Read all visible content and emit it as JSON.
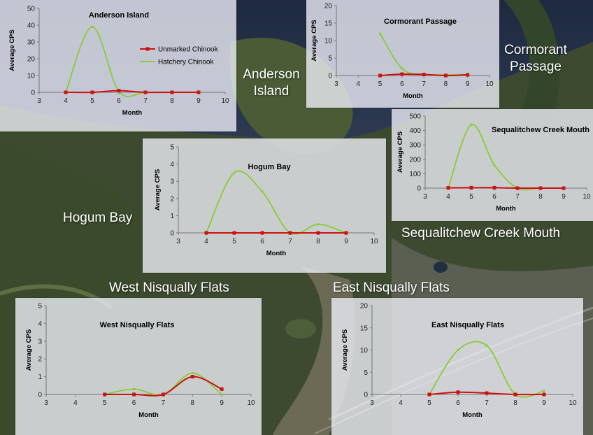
{
  "colors": {
    "unmarked": "#cc1111",
    "hatchery": "#88cc33"
  },
  "map_labels": {
    "anderson_island": [
      "Anderson",
      "Island"
    ],
    "cormorant_passage": [
      "Cormorant",
      "Passage"
    ],
    "hogum_bay": [
      "Hogum Bay"
    ],
    "sequalitchew": [
      "Sequalitchew Creek Mouth"
    ],
    "west_nisqually": [
      "West Nisqually Flats"
    ],
    "east_nisqually": [
      "East Nisqually Flats"
    ]
  },
  "legend": {
    "unmarked": "Unmarked Chinook",
    "hatchery": "Hatchery Chinook"
  },
  "chart_data": [
    {
      "id": "anderson",
      "type": "line",
      "title": "Anderson Island",
      "xlabel": "Month",
      "ylabel": "Average CPS",
      "xlim": [
        3,
        10
      ],
      "xticks": [
        3,
        4,
        5,
        6,
        7,
        8,
        9,
        10
      ],
      "ylim": [
        0,
        50
      ],
      "yticks": [
        0,
        10,
        20,
        30,
        40,
        50
      ],
      "x": [
        4,
        5,
        6,
        7,
        8,
        9
      ],
      "series": [
        {
          "name": "Unmarked Chinook",
          "values": [
            0,
            0,
            1,
            0,
            0,
            0
          ]
        },
        {
          "name": "Hatchery Chinook",
          "values": [
            0,
            39,
            0.5,
            0,
            0,
            0
          ]
        }
      ]
    },
    {
      "id": "cormorant",
      "type": "line",
      "title": "Cormorant Passage",
      "xlabel": "Month",
      "ylabel": "Average CPS",
      "xlim": [
        3,
        10
      ],
      "xticks": [
        3,
        4,
        5,
        6,
        7,
        8,
        9,
        10
      ],
      "ylim": [
        0,
        20
      ],
      "yticks": [
        0,
        5,
        10,
        15,
        20
      ],
      "x": [
        5,
        6,
        7,
        8,
        9
      ],
      "series": [
        {
          "name": "Unmarked Chinook",
          "values": [
            0,
            0.4,
            0.3,
            0,
            0.2
          ]
        },
        {
          "name": "Hatchery Chinook",
          "values": [
            12,
            2,
            0.3,
            0.2,
            0.3
          ]
        }
      ]
    },
    {
      "id": "sequalitchew",
      "type": "line",
      "title": "Sequalitchew Creek Mouth",
      "xlabel": "Month",
      "ylabel": "Average CPS",
      "xlim": [
        3,
        10
      ],
      "xticks": [
        3,
        4,
        5,
        6,
        7,
        8,
        9,
        10
      ],
      "ylim": [
        0,
        500
      ],
      "yticks": [
        0,
        100,
        200,
        300,
        400,
        500
      ],
      "x": [
        4,
        5,
        6,
        7,
        8,
        9
      ],
      "series": [
        {
          "name": "Unmarked Chinook",
          "values": [
            2,
            3,
            3,
            0,
            0,
            0
          ]
        },
        {
          "name": "Hatchery Chinook",
          "values": [
            0,
            440,
            160,
            0,
            0,
            0
          ]
        }
      ]
    },
    {
      "id": "hogum",
      "type": "line",
      "title": "Hogum Bay",
      "xlabel": "Month",
      "ylabel": "Average CPS",
      "xlim": [
        3,
        10
      ],
      "xticks": [
        3,
        4,
        5,
        6,
        7,
        8,
        9,
        10
      ],
      "ylim": [
        0,
        5
      ],
      "yticks": [
        0,
        1,
        2,
        3,
        4,
        5
      ],
      "x": [
        4,
        5,
        6,
        7,
        8,
        9
      ],
      "series": [
        {
          "name": "Unmarked Chinook",
          "values": [
            0,
            0,
            0,
            0,
            0,
            0
          ]
        },
        {
          "name": "Hatchery Chinook",
          "values": [
            0,
            3.5,
            2.4,
            0,
            0.5,
            0
          ]
        }
      ]
    },
    {
      "id": "west",
      "type": "line",
      "title": "West Nisqually Flats",
      "xlabel": "Month",
      "ylabel": "Average CPS",
      "xlim": [
        3,
        10
      ],
      "xticks": [
        3,
        4,
        5,
        6,
        7,
        8,
        9,
        10
      ],
      "ylim": [
        0,
        5
      ],
      "yticks": [
        0,
        1,
        2,
        3,
        4,
        5
      ],
      "x": [
        5,
        6,
        7,
        8,
        9
      ],
      "series": [
        {
          "name": "Unmarked Chinook",
          "values": [
            0,
            0,
            0,
            1,
            0.3
          ]
        },
        {
          "name": "Hatchery Chinook",
          "values": [
            0,
            0.3,
            0,
            1.2,
            0
          ]
        }
      ]
    },
    {
      "id": "east",
      "type": "line",
      "title": "East Nisqually Flats",
      "xlabel": "Month",
      "ylabel": "Average CPS",
      "xlim": [
        3,
        10
      ],
      "xticks": [
        3,
        4,
        5,
        6,
        7,
        8,
        9,
        10
      ],
      "ylim": [
        0,
        20
      ],
      "yticks": [
        0,
        5,
        10,
        15,
        20
      ],
      "x": [
        5,
        6,
        7,
        8,
        9
      ],
      "series": [
        {
          "name": "Unmarked Chinook",
          "values": [
            0,
            0.5,
            0.3,
            0,
            0
          ]
        },
        {
          "name": "Hatchery Chinook",
          "values": [
            0,
            10,
            11,
            0,
            0.8
          ]
        }
      ]
    }
  ]
}
